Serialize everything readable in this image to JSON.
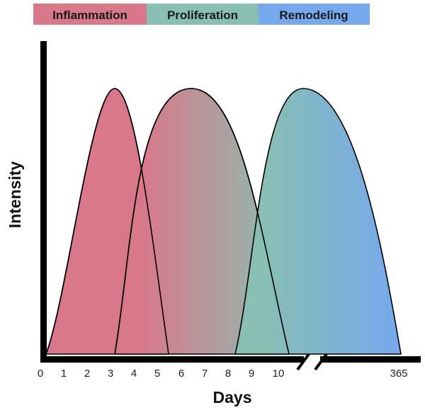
{
  "chart_data": {
    "type": "area",
    "xlabel": "Days",
    "ylabel": "Intensity",
    "legend": {
      "placement": "top",
      "items": [
        {
          "name": "Inflammation",
          "color": "#d9788a"
        },
        {
          "name": "Proliferation",
          "color": "#88bfb2"
        },
        {
          "name": "Remodeling",
          "color": "#76a8ee"
        }
      ]
    },
    "x_ticks": [
      "0",
      "1",
      "2",
      "3",
      "4",
      "5",
      "6",
      "7",
      "8",
      "9",
      "10",
      "365"
    ],
    "axis_break": {
      "between": [
        "10",
        "365"
      ]
    },
    "ylim": [
      0,
      1
    ],
    "series": [
      {
        "name": "Inflammation",
        "start": 0,
        "peak": 3.2,
        "end": 5.4,
        "peak_intensity": 1.0,
        "color": "#d9788a"
      },
      {
        "name": "Proliferation",
        "start": 3.2,
        "peak": 6.6,
        "end": 10.5,
        "peak_intensity": 1.0,
        "color": "#88bfb2"
      },
      {
        "name": "Remodeling",
        "start": 8.3,
        "peak": "365 (approx. 11.5 on the axis before the break)",
        "end": 365,
        "peak_intensity": 1.0,
        "color": "#76a8ee"
      }
    ]
  }
}
